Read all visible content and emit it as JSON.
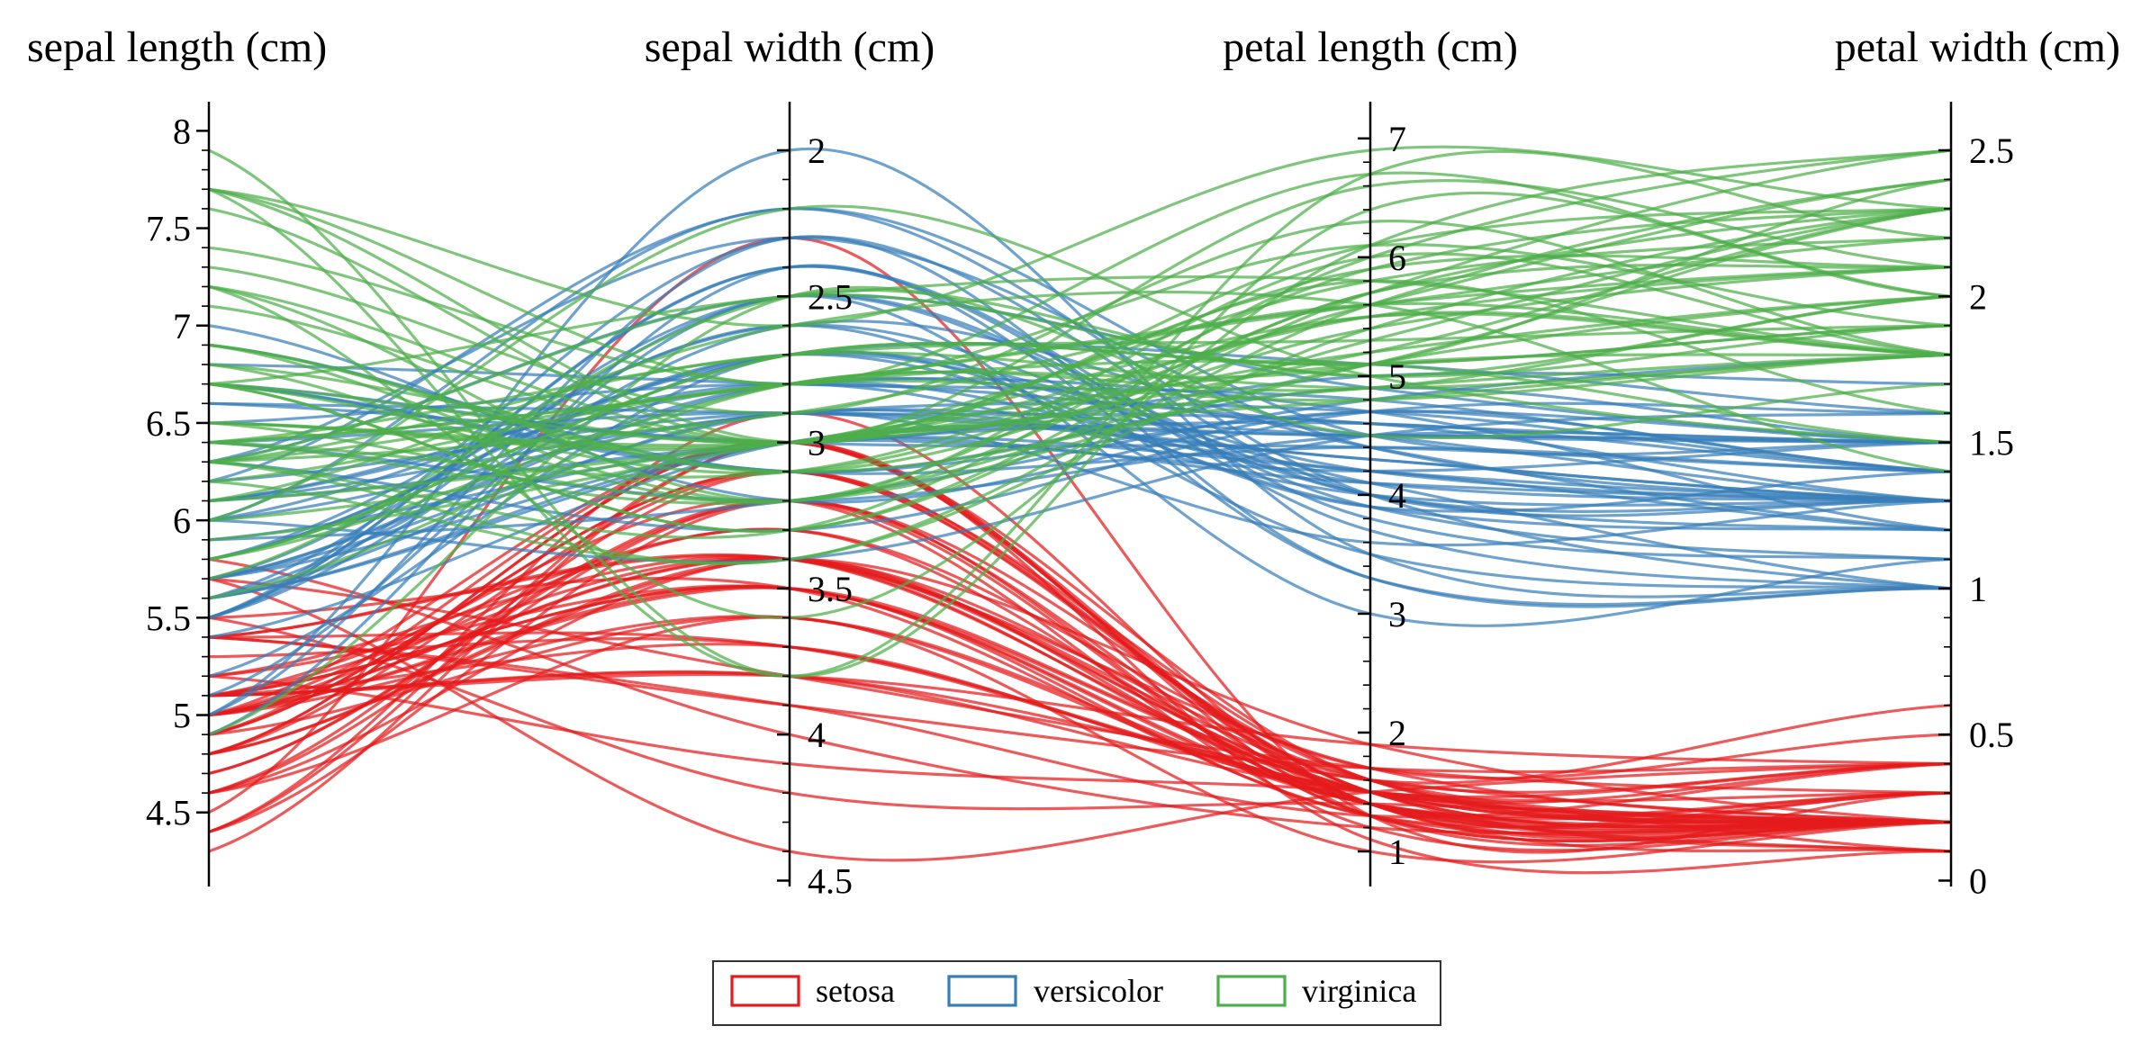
{
  "chart_data": {
    "type": "parallel-coordinates",
    "axes": [
      {
        "key": "sepal_length",
        "title": "sepal length (cm)",
        "range": [
          4.3,
          7.9
        ],
        "inverted": false,
        "ticks": [
          4.5,
          5,
          5.5,
          6,
          6.5,
          7,
          7.5,
          8
        ],
        "tick_labels": [
          "4.5",
          "5",
          "5.5",
          "6",
          "6.5",
          "7",
          "7.5",
          "8"
        ]
      },
      {
        "key": "sepal_width",
        "title": "sepal width (cm)",
        "range": [
          2.0,
          4.4
        ],
        "inverted": true,
        "ticks": [
          2,
          2.5,
          3,
          3.5,
          4,
          4.5
        ],
        "tick_labels": [
          "2",
          "2.5",
          "3",
          "3.5",
          "4",
          "4.5"
        ]
      },
      {
        "key": "petal_length",
        "title": "petal length (cm)",
        "range": [
          1.0,
          6.9
        ],
        "inverted": false,
        "ticks": [
          1,
          2,
          3,
          4,
          5,
          6,
          7
        ],
        "tick_labels": [
          "1",
          "2",
          "3",
          "4",
          "5",
          "6",
          "7"
        ]
      },
      {
        "key": "petal_width",
        "title": "petal width (cm)",
        "range": [
          0.1,
          2.5
        ],
        "inverted": false,
        "ticks": [
          0,
          0.5,
          1,
          1.5,
          2,
          2.5
        ],
        "tick_labels": [
          "0",
          "0.5",
          "1",
          "1.5",
          "2",
          "2.5"
        ]
      }
    ],
    "legend": {
      "position": "bottom-center",
      "entries": [
        "setosa",
        "versicolor",
        "virginica"
      ]
    },
    "colors": {
      "setosa": "#e41a1c",
      "versicolor": "#377eb8",
      "virginica": "#4daf4a"
    },
    "series": [
      {
        "name": "setosa",
        "rows": [
          [
            5.1,
            3.5,
            1.4,
            0.2
          ],
          [
            4.9,
            3.0,
            1.4,
            0.2
          ],
          [
            4.7,
            3.2,
            1.3,
            0.2
          ],
          [
            4.6,
            3.1,
            1.5,
            0.2
          ],
          [
            5.0,
            3.6,
            1.4,
            0.2
          ],
          [
            5.4,
            3.9,
            1.7,
            0.4
          ],
          [
            4.6,
            3.4,
            1.4,
            0.3
          ],
          [
            5.0,
            3.4,
            1.5,
            0.2
          ],
          [
            4.4,
            2.9,
            1.4,
            0.2
          ],
          [
            4.9,
            3.1,
            1.5,
            0.1
          ],
          [
            5.4,
            3.7,
            1.5,
            0.2
          ],
          [
            4.8,
            3.4,
            1.6,
            0.2
          ],
          [
            4.8,
            3.0,
            1.4,
            0.1
          ],
          [
            4.3,
            3.0,
            1.1,
            0.1
          ],
          [
            5.8,
            4.0,
            1.2,
            0.2
          ],
          [
            5.7,
            4.4,
            1.5,
            0.4
          ],
          [
            5.4,
            3.9,
            1.3,
            0.4
          ],
          [
            5.1,
            3.5,
            1.4,
            0.3
          ],
          [
            5.7,
            3.8,
            1.7,
            0.3
          ],
          [
            5.1,
            3.8,
            1.5,
            0.3
          ],
          [
            5.4,
            3.4,
            1.7,
            0.2
          ],
          [
            5.1,
            3.7,
            1.5,
            0.4
          ],
          [
            4.6,
            3.6,
            1.0,
            0.2
          ],
          [
            5.1,
            3.3,
            1.7,
            0.5
          ],
          [
            4.8,
            3.4,
            1.9,
            0.2
          ],
          [
            5.0,
            3.0,
            1.6,
            0.2
          ],
          [
            5.0,
            3.4,
            1.6,
            0.4
          ],
          [
            5.2,
            3.5,
            1.5,
            0.2
          ],
          [
            5.2,
            3.4,
            1.4,
            0.2
          ],
          [
            4.7,
            3.2,
            1.6,
            0.2
          ],
          [
            4.8,
            3.1,
            1.6,
            0.2
          ],
          [
            5.4,
            3.4,
            1.5,
            0.4
          ],
          [
            5.2,
            4.1,
            1.5,
            0.1
          ],
          [
            5.5,
            4.2,
            1.4,
            0.2
          ],
          [
            4.9,
            3.1,
            1.5,
            0.2
          ],
          [
            5.0,
            3.2,
            1.2,
            0.2
          ],
          [
            5.5,
            3.5,
            1.3,
            0.2
          ],
          [
            4.9,
            3.6,
            1.4,
            0.1
          ],
          [
            4.4,
            3.0,
            1.3,
            0.2
          ],
          [
            5.1,
            3.4,
            1.5,
            0.2
          ],
          [
            5.0,
            3.5,
            1.3,
            0.3
          ],
          [
            4.5,
            2.3,
            1.3,
            0.3
          ],
          [
            4.4,
            3.2,
            1.3,
            0.2
          ],
          [
            5.0,
            3.5,
            1.6,
            0.6
          ],
          [
            5.1,
            3.8,
            1.9,
            0.4
          ],
          [
            4.8,
            3.0,
            1.4,
            0.3
          ],
          [
            5.1,
            3.8,
            1.6,
            0.2
          ],
          [
            4.6,
            3.2,
            1.4,
            0.2
          ],
          [
            5.3,
            3.7,
            1.5,
            0.2
          ],
          [
            5.0,
            3.3,
            1.4,
            0.2
          ]
        ]
      },
      {
        "name": "versicolor",
        "rows": [
          [
            7.0,
            3.2,
            4.7,
            1.4
          ],
          [
            6.4,
            3.2,
            4.5,
            1.5
          ],
          [
            6.9,
            3.1,
            4.9,
            1.5
          ],
          [
            5.5,
            2.3,
            4.0,
            1.3
          ],
          [
            6.5,
            2.8,
            4.6,
            1.5
          ],
          [
            5.7,
            2.8,
            4.5,
            1.3
          ],
          [
            6.3,
            3.3,
            4.7,
            1.6
          ],
          [
            4.9,
            2.4,
            3.3,
            1.0
          ],
          [
            6.6,
            2.9,
            4.6,
            1.3
          ],
          [
            5.2,
            2.7,
            3.9,
            1.4
          ],
          [
            5.0,
            2.0,
            3.5,
            1.0
          ],
          [
            5.9,
            3.0,
            4.2,
            1.5
          ],
          [
            6.0,
            2.2,
            4.0,
            1.0
          ],
          [
            6.1,
            2.9,
            4.7,
            1.4
          ],
          [
            5.6,
            2.9,
            3.6,
            1.3
          ],
          [
            6.7,
            3.1,
            4.4,
            1.4
          ],
          [
            5.6,
            3.0,
            4.5,
            1.5
          ],
          [
            5.8,
            2.7,
            4.1,
            1.0
          ],
          [
            6.2,
            2.2,
            4.5,
            1.5
          ],
          [
            5.6,
            2.5,
            3.9,
            1.1
          ],
          [
            5.9,
            3.2,
            4.8,
            1.8
          ],
          [
            6.1,
            2.8,
            4.0,
            1.3
          ],
          [
            6.3,
            2.5,
            4.9,
            1.5
          ],
          [
            6.1,
            2.8,
            4.7,
            1.2
          ],
          [
            6.4,
            2.9,
            4.3,
            1.3
          ],
          [
            6.6,
            3.0,
            4.4,
            1.4
          ],
          [
            6.8,
            2.8,
            4.8,
            1.4
          ],
          [
            6.7,
            3.0,
            5.0,
            1.7
          ],
          [
            6.0,
            2.9,
            4.5,
            1.5
          ],
          [
            5.7,
            2.6,
            3.5,
            1.0
          ],
          [
            5.5,
            2.4,
            3.8,
            1.1
          ],
          [
            5.5,
            2.4,
            3.7,
            1.0
          ],
          [
            5.8,
            2.7,
            3.9,
            1.2
          ],
          [
            6.0,
            2.7,
            5.1,
            1.6
          ],
          [
            5.4,
            3.0,
            4.5,
            1.5
          ],
          [
            6.0,
            3.4,
            4.5,
            1.6
          ],
          [
            6.7,
            3.1,
            4.7,
            1.5
          ],
          [
            6.3,
            2.3,
            4.4,
            1.3
          ],
          [
            5.6,
            3.0,
            4.1,
            1.3
          ],
          [
            5.5,
            2.5,
            4.0,
            1.3
          ],
          [
            5.5,
            2.6,
            4.4,
            1.2
          ],
          [
            6.1,
            3.0,
            4.6,
            1.4
          ],
          [
            5.8,
            2.6,
            4.0,
            1.2
          ],
          [
            5.0,
            2.3,
            3.3,
            1.0
          ],
          [
            5.6,
            2.7,
            4.2,
            1.3
          ],
          [
            5.7,
            3.0,
            4.2,
            1.2
          ],
          [
            5.7,
            2.9,
            4.2,
            1.3
          ],
          [
            6.2,
            2.9,
            4.3,
            1.3
          ],
          [
            5.1,
            2.5,
            3.0,
            1.1
          ],
          [
            5.7,
            2.8,
            4.1,
            1.3
          ]
        ]
      },
      {
        "name": "virginica",
        "rows": [
          [
            6.3,
            3.3,
            6.0,
            2.5
          ],
          [
            5.8,
            2.7,
            5.1,
            1.9
          ],
          [
            7.1,
            3.0,
            5.9,
            2.1
          ],
          [
            6.3,
            2.9,
            5.6,
            1.8
          ],
          [
            6.5,
            3.0,
            5.8,
            2.2
          ],
          [
            7.6,
            3.0,
            6.6,
            2.1
          ],
          [
            4.9,
            2.5,
            4.5,
            1.7
          ],
          [
            7.3,
            2.9,
            6.3,
            1.8
          ],
          [
            6.7,
            2.5,
            5.8,
            1.8
          ],
          [
            7.2,
            3.6,
            6.1,
            2.5
          ],
          [
            6.5,
            3.2,
            5.1,
            2.0
          ],
          [
            6.4,
            2.7,
            5.3,
            1.9
          ],
          [
            6.8,
            3.0,
            5.5,
            2.1
          ],
          [
            5.7,
            2.5,
            5.0,
            2.0
          ],
          [
            5.8,
            2.8,
            5.1,
            2.4
          ],
          [
            6.4,
            3.2,
            5.3,
            2.3
          ],
          [
            6.5,
            3.0,
            5.5,
            1.8
          ],
          [
            7.7,
            3.8,
            6.7,
            2.2
          ],
          [
            7.7,
            2.6,
            6.9,
            2.3
          ],
          [
            6.0,
            2.2,
            5.0,
            1.5
          ],
          [
            6.9,
            3.2,
            5.7,
            2.3
          ],
          [
            5.6,
            2.8,
            4.9,
            2.0
          ],
          [
            7.7,
            2.8,
            6.7,
            2.0
          ],
          [
            6.3,
            2.7,
            4.9,
            1.8
          ],
          [
            6.7,
            3.3,
            5.7,
            2.1
          ],
          [
            7.2,
            3.2,
            6.0,
            1.8
          ],
          [
            6.2,
            2.8,
            4.8,
            1.8
          ],
          [
            6.1,
            3.0,
            4.9,
            1.8
          ],
          [
            6.4,
            2.8,
            5.6,
            2.1
          ],
          [
            7.2,
            3.0,
            5.8,
            1.6
          ],
          [
            7.4,
            2.8,
            6.1,
            1.9
          ],
          [
            7.9,
            3.8,
            6.4,
            2.0
          ],
          [
            6.4,
            2.8,
            5.6,
            2.2
          ],
          [
            6.3,
            2.8,
            5.1,
            1.5
          ],
          [
            6.1,
            2.6,
            5.6,
            1.4
          ],
          [
            7.7,
            3.0,
            6.1,
            2.3
          ],
          [
            6.3,
            3.4,
            5.6,
            2.4
          ],
          [
            6.4,
            3.1,
            5.5,
            1.8
          ],
          [
            6.0,
            3.0,
            4.8,
            1.8
          ],
          [
            6.9,
            3.1,
            5.4,
            2.1
          ],
          [
            6.7,
            3.1,
            5.6,
            2.4
          ],
          [
            6.9,
            3.1,
            5.1,
            2.3
          ],
          [
            5.8,
            2.7,
            5.1,
            1.9
          ],
          [
            6.8,
            3.2,
            5.9,
            2.3
          ],
          [
            6.7,
            3.3,
            5.7,
            2.5
          ],
          [
            6.7,
            3.0,
            5.2,
            2.3
          ],
          [
            6.3,
            2.5,
            5.0,
            1.9
          ],
          [
            6.5,
            3.0,
            5.2,
            2.0
          ],
          [
            6.2,
            3.4,
            5.4,
            2.3
          ],
          [
            5.9,
            3.0,
            5.1,
            1.8
          ]
        ]
      }
    ]
  }
}
